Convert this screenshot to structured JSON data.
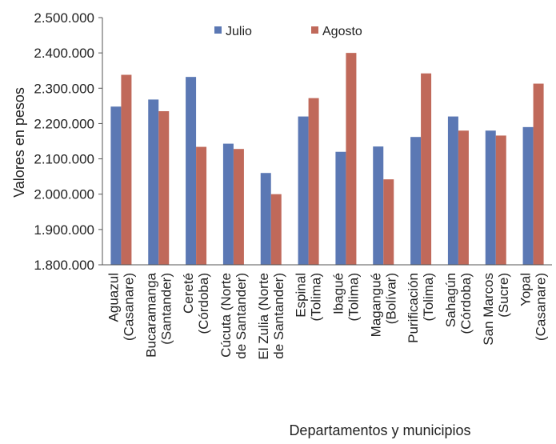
{
  "chart_data": {
    "type": "bar",
    "title": "",
    "xlabel": "Departamentos y municipios",
    "ylabel": "Valores en pesos",
    "ylim": [
      1800000,
      2500000
    ],
    "yticks": [
      1800000,
      1900000,
      2000000,
      2100000,
      2200000,
      2300000,
      2400000,
      2500000
    ],
    "ytick_labels": [
      "1.800.000",
      "1.900.000",
      "2.000.000",
      "2.100.000",
      "2.200.000",
      "2.300.000",
      "2.400.000",
      "2.500.000"
    ],
    "grid": false,
    "legend_position": "top-center",
    "categories": [
      [
        "Aguazul",
        "(Casanare)"
      ],
      [
        "Bucaramanga",
        "(Santander)"
      ],
      [
        "Cereté",
        "(Córdoba)"
      ],
      [
        "Cúcuta (Norte",
        "de Santander)"
      ],
      [
        "El Zulia (Norte",
        "de Santander)"
      ],
      [
        "Espinal",
        "(Tolima)"
      ],
      [
        "Ibagué",
        "(Tolima)"
      ],
      [
        "Magangué",
        "(Bolívar)"
      ],
      [
        "Purificación",
        "(Tolima)"
      ],
      [
        "Sahagún",
        "(Córdoba)"
      ],
      [
        "San Marcos",
        "(Sucre)"
      ],
      [
        "Yopal",
        "(Casanare)"
      ]
    ],
    "series": [
      {
        "name": "Julio",
        "color": "#5b78b4",
        "values": [
          2248000,
          2268000,
          2332000,
          2143000,
          2060000,
          2220000,
          2120000,
          2135000,
          2162000,
          2220000,
          2180000,
          2190000
        ]
      },
      {
        "name": "Agosto",
        "color": "#c0695a",
        "values": [
          2338000,
          2235000,
          2134000,
          2128000,
          2000000,
          2272000,
          2400000,
          2042000,
          2342000,
          2180000,
          2166000,
          2313000
        ]
      }
    ]
  }
}
